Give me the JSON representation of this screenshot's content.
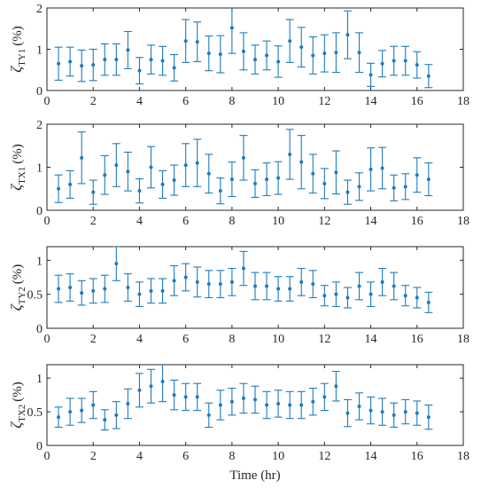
{
  "figure": {
    "xlabel": "Time (hr)"
  },
  "chart_data": [
    {
      "type": "errorbar",
      "ylabel": {
        "greek": "ζ",
        "sub": "TY1",
        "unit": "(%)"
      },
      "xlim": [
        0,
        18
      ],
      "ylim": [
        0,
        2
      ],
      "xticks": [
        0,
        2,
        4,
        6,
        8,
        10,
        12,
        14,
        16,
        18
      ],
      "yticks": [
        0,
        1,
        2
      ],
      "series": [
        {
          "x": [
            0.5,
            1,
            1.5,
            2,
            2.5,
            3,
            3.5,
            4,
            4.5,
            5,
            5.5,
            6,
            6.5,
            7,
            7.5,
            8,
            8.5,
            9,
            9.5,
            10,
            10.5,
            11,
            11.5,
            12,
            12.5,
            13,
            13.5,
            14,
            14.5,
            15,
            15.5,
            16,
            16.5
          ],
          "y": [
            0.65,
            0.7,
            0.6,
            0.62,
            0.75,
            0.75,
            0.98,
            0.48,
            0.75,
            0.72,
            0.55,
            1.2,
            1.18,
            0.9,
            0.88,
            1.52,
            0.95,
            0.75,
            0.85,
            0.7,
            1.2,
            1.05,
            0.85,
            0.9,
            0.92,
            1.35,
            0.92,
            0.38,
            0.65,
            0.72,
            0.72,
            0.62,
            0.35
          ],
          "err": [
            0.4,
            0.35,
            0.38,
            0.38,
            0.38,
            0.38,
            0.45,
            0.32,
            0.35,
            0.35,
            0.32,
            0.52,
            0.48,
            0.42,
            0.45,
            0.62,
            0.45,
            0.35,
            0.35,
            0.38,
            0.52,
            0.48,
            0.45,
            0.45,
            0.48,
            0.58,
            0.48,
            0.28,
            0.32,
            0.35,
            0.35,
            0.32,
            0.28
          ]
        }
      ]
    },
    {
      "type": "errorbar",
      "ylabel": {
        "greek": "ζ",
        "sub": "TX1",
        "unit": "(%)"
      },
      "xlim": [
        0,
        18
      ],
      "ylim": [
        0,
        2
      ],
      "xticks": [
        0,
        2,
        4,
        6,
        8,
        10,
        12,
        14,
        16,
        18
      ],
      "yticks": [
        0,
        1,
        2
      ],
      "series": [
        {
          "x": [
            0.5,
            1,
            1.5,
            2,
            2.5,
            3,
            3.5,
            4,
            4.5,
            5,
            5.5,
            6,
            6.5,
            7,
            7.5,
            8,
            8.5,
            9,
            9.5,
            10,
            10.5,
            11,
            11.5,
            12,
            12.5,
            13,
            13.5,
            14,
            14.5,
            15,
            15.5,
            16,
            16.5
          ],
          "y": [
            0.5,
            0.6,
            1.22,
            0.42,
            0.82,
            1.05,
            0.9,
            0.45,
            1.0,
            0.6,
            0.7,
            1.05,
            1.1,
            0.85,
            0.45,
            0.72,
            1.22,
            0.62,
            0.72,
            0.75,
            1.3,
            1.12,
            0.85,
            0.62,
            0.88,
            0.42,
            0.55,
            0.95,
            0.98,
            0.52,
            0.55,
            0.82,
            0.72
          ],
          "err": [
            0.32,
            0.32,
            0.6,
            0.28,
            0.45,
            0.5,
            0.45,
            0.28,
            0.48,
            0.32,
            0.35,
            0.5,
            0.55,
            0.45,
            0.3,
            0.4,
            0.52,
            0.32,
            0.38,
            0.38,
            0.58,
            0.62,
            0.45,
            0.35,
            0.5,
            0.28,
            0.32,
            0.5,
            0.48,
            0.3,
            0.3,
            0.4,
            0.38
          ]
        }
      ]
    },
    {
      "type": "errorbar",
      "ylabel": {
        "greek": "ζ",
        "sub": "TY2",
        "unit": "(%)"
      },
      "xlim": [
        0,
        18
      ],
      "ylim": [
        0,
        1.2
      ],
      "xticks": [
        0,
        2,
        4,
        6,
        8,
        10,
        12,
        14,
        16,
        18
      ],
      "yticks": [
        0,
        0.5,
        1
      ],
      "series": [
        {
          "x": [
            0.5,
            1,
            1.5,
            2,
            2.5,
            3,
            3.5,
            4,
            4.5,
            5,
            5.5,
            6,
            6.5,
            7,
            7.5,
            8,
            8.5,
            9,
            9.5,
            10,
            10.5,
            11,
            11.5,
            12,
            12.5,
            13,
            13.5,
            14,
            14.5,
            15,
            15.5,
            16,
            16.5
          ],
          "y": [
            0.58,
            0.6,
            0.52,
            0.55,
            0.58,
            0.95,
            0.6,
            0.5,
            0.55,
            0.55,
            0.7,
            0.75,
            0.68,
            0.65,
            0.65,
            0.68,
            0.88,
            0.62,
            0.62,
            0.58,
            0.58,
            0.68,
            0.65,
            0.48,
            0.5,
            0.45,
            0.62,
            0.5,
            0.68,
            0.62,
            0.48,
            0.45,
            0.38
          ],
          "err": [
            0.2,
            0.2,
            0.18,
            0.18,
            0.2,
            0.25,
            0.2,
            0.18,
            0.18,
            0.18,
            0.22,
            0.2,
            0.22,
            0.2,
            0.2,
            0.2,
            0.25,
            0.2,
            0.2,
            0.18,
            0.18,
            0.2,
            0.2,
            0.15,
            0.18,
            0.15,
            0.2,
            0.18,
            0.2,
            0.2,
            0.15,
            0.15,
            0.15
          ]
        }
      ]
    },
    {
      "type": "errorbar",
      "ylabel": {
        "greek": "ζ",
        "sub": "TX2",
        "unit": "(%)"
      },
      "xlim": [
        0,
        18
      ],
      "ylim": [
        0,
        1.2
      ],
      "xticks": [
        0,
        2,
        4,
        6,
        8,
        10,
        12,
        14,
        16,
        18
      ],
      "yticks": [
        0,
        0.5,
        1
      ],
      "series": [
        {
          "x": [
            0.5,
            1,
            1.5,
            2,
            2.5,
            3,
            3.5,
            4,
            4.5,
            5,
            5.5,
            6,
            6.5,
            7,
            7.5,
            8,
            8.5,
            9,
            9.5,
            10,
            10.5,
            11,
            11.5,
            12,
            12.5,
            13,
            13.5,
            14,
            14.5,
            15,
            15.5,
            16,
            16.5
          ],
          "y": [
            0.42,
            0.5,
            0.52,
            0.6,
            0.38,
            0.45,
            0.62,
            0.82,
            0.88,
            0.95,
            0.75,
            0.72,
            0.72,
            0.45,
            0.6,
            0.65,
            0.7,
            0.68,
            0.6,
            0.62,
            0.6,
            0.6,
            0.65,
            0.72,
            0.88,
            0.48,
            0.58,
            0.52,
            0.5,
            0.45,
            0.5,
            0.48,
            0.42
          ],
          "err": [
            0.15,
            0.2,
            0.18,
            0.2,
            0.15,
            0.2,
            0.22,
            0.25,
            0.25,
            0.3,
            0.22,
            0.2,
            0.2,
            0.18,
            0.22,
            0.2,
            0.22,
            0.2,
            0.2,
            0.2,
            0.2,
            0.2,
            0.2,
            0.2,
            0.22,
            0.2,
            0.2,
            0.2,
            0.2,
            0.18,
            0.18,
            0.18,
            0.18
          ]
        }
      ]
    }
  ]
}
